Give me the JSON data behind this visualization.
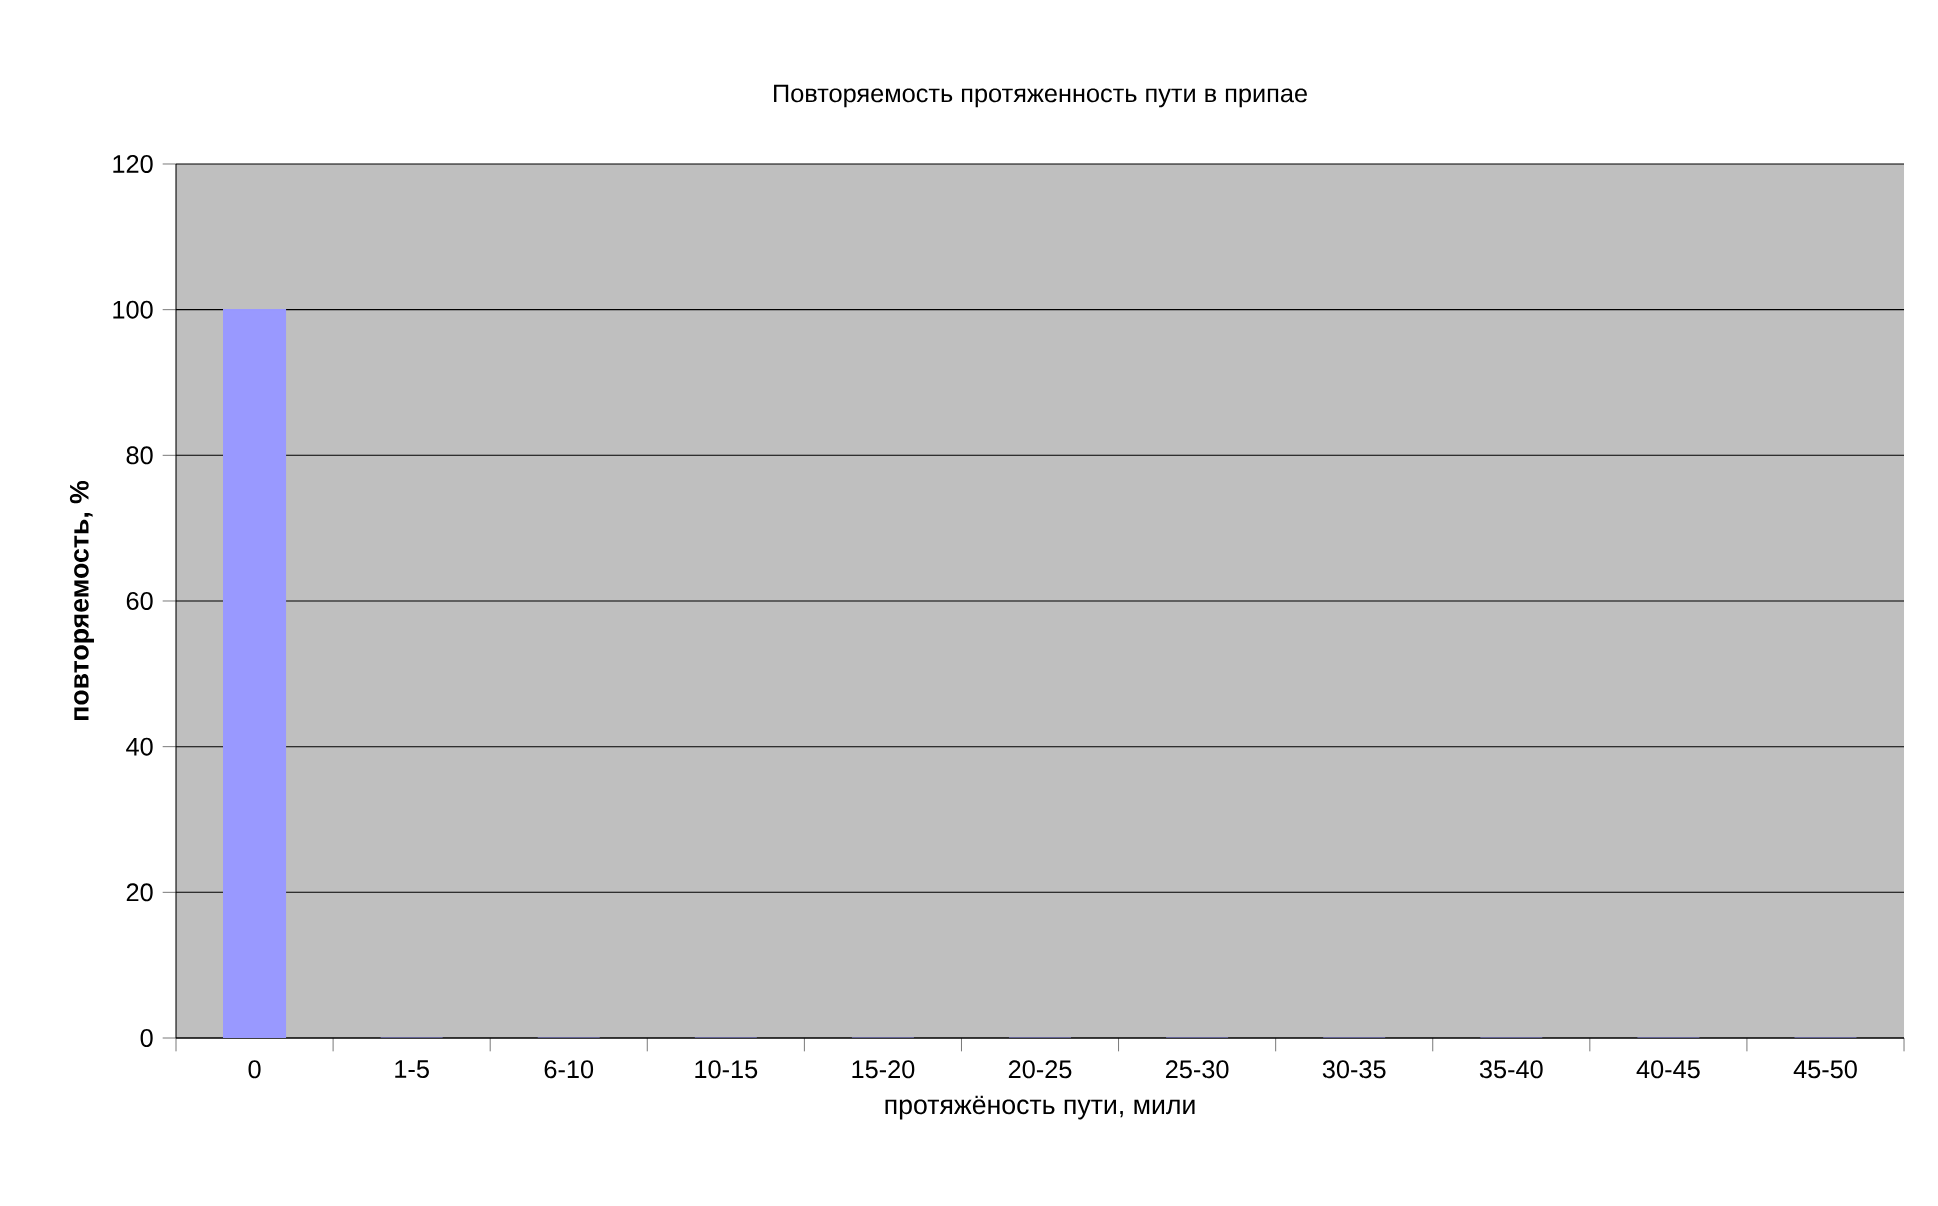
{
  "chart_data": {
    "type": "bar",
    "title": "Повторяемость протяженность пути в припае",
    "xlabel": "протяжёность пути, мили",
    "ylabel": "повторяемость, %",
    "categories": [
      "0",
      "1-5",
      "6-10",
      "10-15",
      "15-20",
      "20-25",
      "25-30",
      "30-35",
      "35-40",
      "40-45",
      "45-50"
    ],
    "values": [
      100,
      0,
      0,
      0,
      0,
      0,
      0,
      0,
      0,
      0,
      0
    ],
    "color": "#9999ff",
    "ylim": [
      0,
      120
    ],
    "yticks": [
      0,
      20,
      40,
      60,
      80,
      100,
      120
    ],
    "grid": "y"
  }
}
